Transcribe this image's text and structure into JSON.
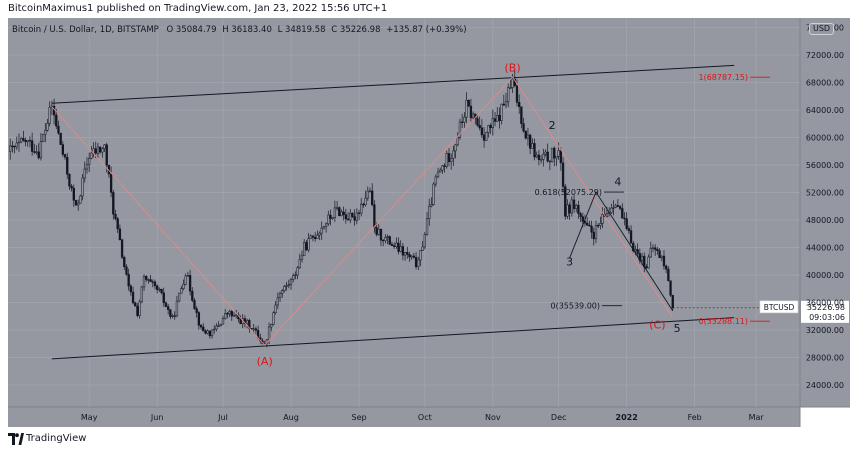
{
  "header": {
    "publish_line": "BitcoinMaximus1 published on TradingView.com, Jan 23, 2022 15:56 UTC+1"
  },
  "legend": {
    "symbol": "Bitcoin / U.S. Dollar, 1D, BITSTAMP",
    "o_label": "O",
    "o_value": "35084.79",
    "h_label": "H",
    "h_value": "36183.40",
    "l_label": "L",
    "l_value": "34819.58",
    "c_label": "C",
    "c_value": "35226.98",
    "change": "+135.87 (+0.39%)"
  },
  "currency_button": "USD",
  "footer": {
    "brand": "TradingView"
  },
  "colors": {
    "pane_bg": "#9598a1",
    "candle": "#131722",
    "grid": "#a6a9b2",
    "fib": "#e01414",
    "wave_line": "#e08a8a",
    "channel": "#131722"
  },
  "chart_data": {
    "type": "candlestick",
    "symbol": "BTCUSD",
    "x_ticks": [
      "May",
      "Jun",
      "Jul",
      "Aug",
      "Sep",
      "Oct",
      "Nov",
      "Dec",
      "2022",
      "Feb",
      "Mar"
    ],
    "x_tick_dates": [
      "2021-05-01",
      "2021-06-01",
      "2021-07-01",
      "2021-08-01",
      "2021-09-01",
      "2021-10-01",
      "2021-11-01",
      "2021-12-01",
      "2022-01-01",
      "2022-02-01",
      "2022-03-01"
    ],
    "x_range": [
      "2021-03-25",
      "2022-03-21"
    ],
    "y_range": [
      20800,
      77400
    ],
    "y_ticks": [
      "24000.00",
      "28000.00",
      "32000.00",
      "36000.00",
      "40000.00",
      "44000.00",
      "48000.00",
      "52000.00",
      "56000.00",
      "60000.00",
      "64000.00",
      "68000.00",
      "72000.00",
      "76000.00"
    ],
    "y_tick_values": [
      24000,
      28000,
      32000,
      36000,
      40000,
      44000,
      48000,
      52000,
      56000,
      60000,
      64000,
      68000,
      72000,
      76000
    ],
    "grid": true,
    "price_path": [
      [
        "2021-03-26",
        58000
      ],
      [
        "2021-04-02",
        59500
      ],
      [
        "2021-04-08",
        58000
      ],
      [
        "2021-04-14",
        64500
      ],
      [
        "2021-04-22",
        53500
      ],
      [
        "2021-04-25",
        49500
      ],
      [
        "2021-05-01",
        57500
      ],
      [
        "2021-05-08",
        58500
      ],
      [
        "2021-05-12",
        49500
      ],
      [
        "2021-05-19",
        38000
      ],
      [
        "2021-05-23",
        34500
      ],
      [
        "2021-05-26",
        39500
      ],
      [
        "2021-06-02",
        37500
      ],
      [
        "2021-06-08",
        33500
      ],
      [
        "2021-06-14",
        40500
      ],
      [
        "2021-06-21",
        32000
      ],
      [
        "2021-06-26",
        31500
      ],
      [
        "2021-07-03",
        34500
      ],
      [
        "2021-07-14",
        32500
      ],
      [
        "2021-07-20",
        29800
      ],
      [
        "2021-07-26",
        37000
      ],
      [
        "2021-08-02",
        39500
      ],
      [
        "2021-08-07",
        44000
      ],
      [
        "2021-08-15",
        47000
      ],
      [
        "2021-08-22",
        49500
      ],
      [
        "2021-08-29",
        48000
      ],
      [
        "2021-09-06",
        52500
      ],
      [
        "2021-09-08",
        46500
      ],
      [
        "2021-09-20",
        43500
      ],
      [
        "2021-09-28",
        41500
      ],
      [
        "2021-10-06",
        54000
      ],
      [
        "2021-10-14",
        58500
      ],
      [
        "2021-10-20",
        64500
      ],
      [
        "2021-10-28",
        60500
      ],
      [
        "2021-11-03",
        62500
      ],
      [
        "2021-11-10",
        68000
      ],
      [
        "2021-11-16",
        60500
      ],
      [
        "2021-11-22",
        56500
      ],
      [
        "2021-11-28",
        57500
      ],
      [
        "2021-12-02",
        57000
      ],
      [
        "2021-12-04",
        49000
      ],
      [
        "2021-12-08",
        50500
      ],
      [
        "2021-12-13",
        47000
      ],
      [
        "2021-12-17",
        46000
      ],
      [
        "2021-12-22",
        48500
      ],
      [
        "2021-12-27",
        51000
      ],
      [
        "2022-01-01",
        46500
      ],
      [
        "2022-01-05",
        43500
      ],
      [
        "2022-01-10",
        41500
      ],
      [
        "2022-01-13",
        44000
      ],
      [
        "2022-01-17",
        42500
      ],
      [
        "2022-01-20",
        39500
      ],
      [
        "2022-01-22",
        35227
      ]
    ],
    "annotations": {
      "wave_labels": [
        {
          "text": "(B)",
          "date": "2021-11-10",
          "price": 70200,
          "color": "red"
        },
        {
          "text": "(A)",
          "date": "2021-07-20",
          "price": 27500,
          "color": "red"
        },
        {
          "text": "(C)",
          "date": "2022-01-15",
          "price": 32800,
          "color": "red"
        },
        {
          "text": "2",
          "date": "2021-11-28",
          "price": 61800,
          "color": "black"
        },
        {
          "text": "3",
          "date": "2021-12-06",
          "price": 42000,
          "color": "black"
        },
        {
          "text": "4",
          "date": "2021-12-28",
          "price": 53600,
          "color": "black"
        },
        {
          "text": "5",
          "date": "2022-01-24",
          "price": 32300,
          "color": "black"
        }
      ],
      "fib_levels": [
        {
          "label": "1(68787.15)",
          "value": 68787.15,
          "color": "red"
        },
        {
          "label": "0(33288.11)",
          "value": 33288.11,
          "color": "red"
        },
        {
          "label": "0(35539.00)",
          "value": 35539.0,
          "color": "black"
        },
        {
          "label": "0.618(52075.29)",
          "value": 52075.29,
          "color": "black"
        }
      ],
      "channel_upper": [
        [
          "2021-04-14",
          65000
        ],
        [
          "2022-02-19",
          70500
        ]
      ],
      "channel_lower": [
        [
          "2021-04-14",
          27800
        ],
        [
          "2022-02-19",
          33800
        ]
      ],
      "wave_lines_red": [
        [
          [
            "2021-04-14",
            64500
          ],
          [
            "2021-07-20",
            29800
          ],
          [
            "2021-11-10",
            68800
          ],
          [
            "2022-01-22",
            33800
          ]
        ]
      ],
      "wave_lines_black": [
        [
          [
            "2021-12-06",
            42500
          ],
          [
            "2021-12-18",
            52075
          ],
          [
            "2022-01-22",
            34800
          ]
        ]
      ]
    },
    "last_price": {
      "symbol": "BTCUSD",
      "price": "35226.98",
      "value": 35226.98,
      "countdown": "09:03:06"
    }
  }
}
